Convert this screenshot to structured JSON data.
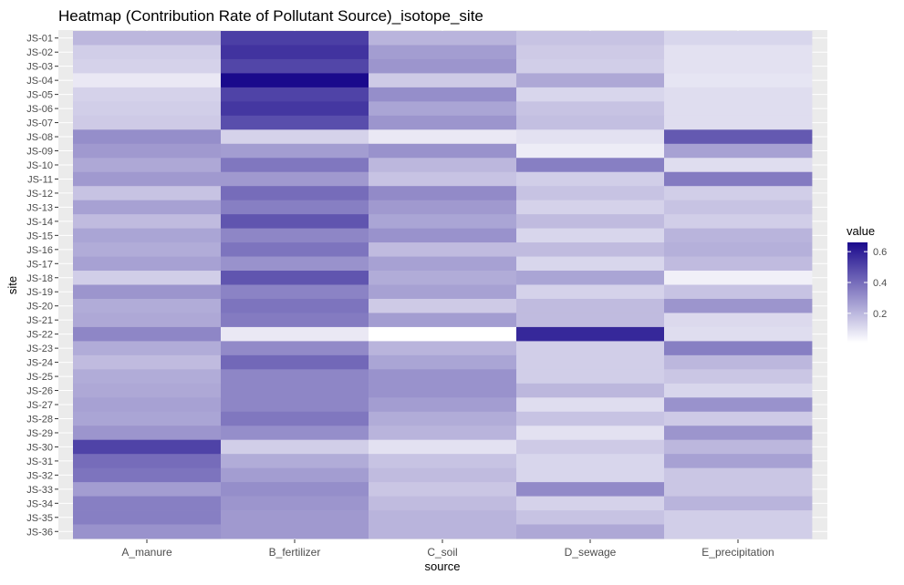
{
  "chart_data": {
    "type": "heatmap",
    "title": "Heatmap (Contribution Rate of Pollutant Source)_isotope_site",
    "xlabel": "source",
    "ylabel": "site",
    "x": [
      "A_manure",
      "B_fertilizer",
      "C_soil",
      "D_sewage",
      "E_precipitation"
    ],
    "y": [
      "JS-01",
      "JS-02",
      "JS-03",
      "JS-04",
      "JS-05",
      "JS-06",
      "JS-07",
      "JS-08",
      "JS-09",
      "JS-10",
      "JS-11",
      "JS-12",
      "JS-13",
      "JS-14",
      "JS-15",
      "JS-16",
      "JS-17",
      "JS-18",
      "JS-19",
      "JS-20",
      "JS-21",
      "JS-22",
      "JS-23",
      "JS-24",
      "JS-25",
      "JS-26",
      "JS-27",
      "JS-28",
      "JS-29",
      "JS-30",
      "JS-31",
      "JS-32",
      "JS-33",
      "JS-34",
      "JS-35",
      "JS-36"
    ],
    "values": [
      [
        0.2,
        0.52,
        0.21,
        0.17,
        0.12
      ],
      [
        0.14,
        0.55,
        0.27,
        0.15,
        0.09
      ],
      [
        0.13,
        0.5,
        0.29,
        0.14,
        0.09
      ],
      [
        0.07,
        0.66,
        0.15,
        0.24,
        0.08
      ],
      [
        0.13,
        0.51,
        0.31,
        0.12,
        0.1
      ],
      [
        0.14,
        0.54,
        0.25,
        0.17,
        0.1
      ],
      [
        0.15,
        0.48,
        0.29,
        0.18,
        0.1
      ],
      [
        0.31,
        0.13,
        0.07,
        0.09,
        0.45
      ],
      [
        0.28,
        0.27,
        0.3,
        0.06,
        0.26
      ],
      [
        0.24,
        0.37,
        0.2,
        0.35,
        0.1
      ],
      [
        0.28,
        0.28,
        0.17,
        0.14,
        0.36
      ],
      [
        0.17,
        0.4,
        0.32,
        0.17,
        0.14
      ],
      [
        0.26,
        0.35,
        0.28,
        0.13,
        0.17
      ],
      [
        0.19,
        0.46,
        0.25,
        0.19,
        0.14
      ],
      [
        0.25,
        0.33,
        0.3,
        0.12,
        0.21
      ],
      [
        0.23,
        0.38,
        0.19,
        0.19,
        0.22
      ],
      [
        0.26,
        0.3,
        0.26,
        0.12,
        0.19
      ],
      [
        0.14,
        0.46,
        0.23,
        0.25,
        0.05
      ],
      [
        0.29,
        0.34,
        0.26,
        0.13,
        0.17
      ],
      [
        0.23,
        0.38,
        0.15,
        0.19,
        0.29
      ],
      [
        0.24,
        0.36,
        0.27,
        0.19,
        0.11
      ],
      [
        0.33,
        0.07,
        0.01,
        0.58,
        0.1
      ],
      [
        0.23,
        0.32,
        0.21,
        0.14,
        0.35
      ],
      [
        0.19,
        0.41,
        0.25,
        0.14,
        0.2
      ],
      [
        0.23,
        0.33,
        0.3,
        0.14,
        0.16
      ],
      [
        0.24,
        0.33,
        0.3,
        0.2,
        0.12
      ],
      [
        0.26,
        0.33,
        0.27,
        0.1,
        0.3
      ],
      [
        0.25,
        0.37,
        0.23,
        0.17,
        0.15
      ],
      [
        0.29,
        0.31,
        0.21,
        0.09,
        0.29
      ],
      [
        0.51,
        0.14,
        0.09,
        0.15,
        0.2
      ],
      [
        0.4,
        0.23,
        0.17,
        0.12,
        0.26
      ],
      [
        0.38,
        0.27,
        0.19,
        0.12,
        0.16
      ],
      [
        0.27,
        0.31,
        0.16,
        0.32,
        0.16
      ],
      [
        0.35,
        0.29,
        0.19,
        0.13,
        0.21
      ],
      [
        0.35,
        0.28,
        0.21,
        0.17,
        0.14
      ],
      [
        0.3,
        0.28,
        0.21,
        0.24,
        0.14
      ]
    ],
    "legend": {
      "title": "value",
      "ticks": [
        0.2,
        0.4,
        0.6
      ],
      "tick_labels": [
        "0.2",
        "0.4",
        "0.6"
      ],
      "position": "right",
      "range": [
        0.01,
        0.66
      ]
    },
    "color_low": "#ffffff",
    "color_high": "#1a0a8c",
    "grid": true
  }
}
